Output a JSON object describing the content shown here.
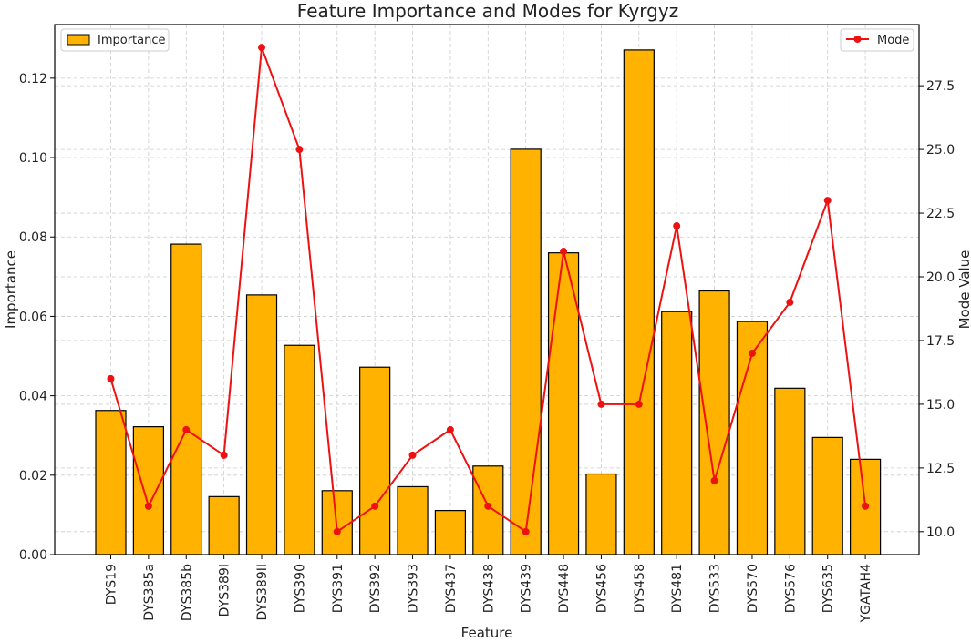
{
  "chart_data": {
    "type": "bar",
    "title": "Feature Importance and Modes for Kyrgyz",
    "xlabel": "Feature",
    "ylabel": "Importance",
    "y2label": "Mode Value",
    "categories": [
      "DYS19",
      "DYS385a",
      "DYS385b",
      "DYS389I",
      "DYS389II",
      "DYS390",
      "DYS391",
      "DYS392",
      "DYS393",
      "DYS437",
      "DYS438",
      "DYS439",
      "DYS448",
      "DYS456",
      "DYS458",
      "DYS481",
      "DYS533",
      "DYS570",
      "DYS576",
      "DYS635",
      "YGATAH4"
    ],
    "series": [
      {
        "name": "Importance",
        "type": "bar",
        "axis": "left",
        "color": "#FFB300",
        "values": [
          0.0363,
          0.0322,
          0.0782,
          0.0146,
          0.0654,
          0.0527,
          0.0161,
          0.0472,
          0.0171,
          0.0111,
          0.0223,
          0.1021,
          0.076,
          0.0203,
          0.1271,
          0.0612,
          0.0664,
          0.0587,
          0.0419,
          0.0295,
          0.024
        ]
      },
      {
        "name": "Mode",
        "type": "line",
        "axis": "right",
        "color": "#EE1111",
        "values": [
          16,
          11,
          14,
          13,
          29,
          25,
          10,
          11,
          13,
          14,
          11,
          10,
          21,
          15,
          15,
          22,
          12,
          17,
          19,
          23,
          11
        ]
      }
    ],
    "ylim": [
      0,
      0.1335
    ],
    "y2lim": [
      9.1,
      29.9
    ],
    "yticks": [
      0.0,
      0.02,
      0.04,
      0.06,
      0.08,
      0.1,
      0.12
    ],
    "ytick_labels": [
      "0.00",
      "0.02",
      "0.04",
      "0.06",
      "0.08",
      "0.10",
      "0.12"
    ],
    "y2ticks": [
      10.0,
      12.5,
      15.0,
      17.5,
      20.0,
      22.5,
      25.0,
      27.5
    ],
    "y2tick_labels": [
      "10.0",
      "12.5",
      "15.0",
      "17.5",
      "20.0",
      "22.5",
      "25.0",
      "27.5"
    ],
    "grid": true,
    "legend": [
      {
        "label": "Importance",
        "placement": "top-left"
      },
      {
        "label": "Mode",
        "placement": "top-right"
      }
    ]
  }
}
